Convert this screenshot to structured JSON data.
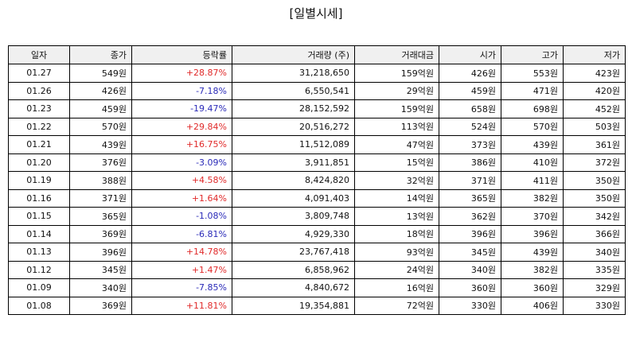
{
  "page": {
    "title": "[일별시세]"
  },
  "table": {
    "columns": [
      "일자",
      "종가",
      "등락률",
      "거래량 (주)",
      "거래대금",
      "시가",
      "고가",
      "저가"
    ],
    "rows": [
      {
        "date": "01.27",
        "close": "549원",
        "change": "+28.87%",
        "direction": "up",
        "volume": "31,218,650",
        "amount": "159억원",
        "open": "426원",
        "high": "553원",
        "low": "423원"
      },
      {
        "date": "01.26",
        "close": "426원",
        "change": "-7.18%",
        "direction": "down",
        "volume": "6,550,541",
        "amount": "29억원",
        "open": "459원",
        "high": "471원",
        "low": "420원"
      },
      {
        "date": "01.23",
        "close": "459원",
        "change": "-19.47%",
        "direction": "down",
        "volume": "28,152,592",
        "amount": "159억원",
        "open": "658원",
        "high": "698원",
        "low": "452원"
      },
      {
        "date": "01.22",
        "close": "570원",
        "change": "+29.84%",
        "direction": "up",
        "volume": "20,516,272",
        "amount": "113억원",
        "open": "524원",
        "high": "570원",
        "low": "503원"
      },
      {
        "date": "01.21",
        "close": "439원",
        "change": "+16.75%",
        "direction": "up",
        "volume": "11,512,089",
        "amount": "47억원",
        "open": "373원",
        "high": "439원",
        "low": "361원"
      },
      {
        "date": "01.20",
        "close": "376원",
        "change": "-3.09%",
        "direction": "down",
        "volume": "3,911,851",
        "amount": "15억원",
        "open": "386원",
        "high": "410원",
        "low": "372원"
      },
      {
        "date": "01.19",
        "close": "388원",
        "change": "+4.58%",
        "direction": "up",
        "volume": "8,424,820",
        "amount": "32억원",
        "open": "371원",
        "high": "411원",
        "low": "350원"
      },
      {
        "date": "01.16",
        "close": "371원",
        "change": "+1.64%",
        "direction": "up",
        "volume": "4,091,403",
        "amount": "14억원",
        "open": "365원",
        "high": "382원",
        "low": "350원"
      },
      {
        "date": "01.15",
        "close": "365원",
        "change": "-1.08%",
        "direction": "down",
        "volume": "3,809,748",
        "amount": "13억원",
        "open": "362원",
        "high": "370원",
        "low": "342원"
      },
      {
        "date": "01.14",
        "close": "369원",
        "change": "-6.81%",
        "direction": "down",
        "volume": "4,929,330",
        "amount": "18억원",
        "open": "396원",
        "high": "396원",
        "low": "366원"
      },
      {
        "date": "01.13",
        "close": "396원",
        "change": "+14.78%",
        "direction": "up",
        "volume": "23,767,418",
        "amount": "93억원",
        "open": "345원",
        "high": "439원",
        "low": "340원"
      },
      {
        "date": "01.12",
        "close": "345원",
        "change": "+1.47%",
        "direction": "up",
        "volume": "6,858,962",
        "amount": "24억원",
        "open": "340원",
        "high": "382원",
        "low": "335원"
      },
      {
        "date": "01.09",
        "close": "340원",
        "change": "-7.85%",
        "direction": "down",
        "volume": "4,840,672",
        "amount": "16억원",
        "open": "360원",
        "high": "360원",
        "low": "329원"
      },
      {
        "date": "01.08",
        "close": "369원",
        "change": "+11.81%",
        "direction": "up",
        "volume": "19,354,881",
        "amount": "72억원",
        "open": "330원",
        "high": "406원",
        "low": "330원"
      }
    ]
  },
  "colors": {
    "up": "#e02a2a",
    "down": "#2a2ab8",
    "header_bg": "#f0f0f0",
    "border": "#000000"
  }
}
